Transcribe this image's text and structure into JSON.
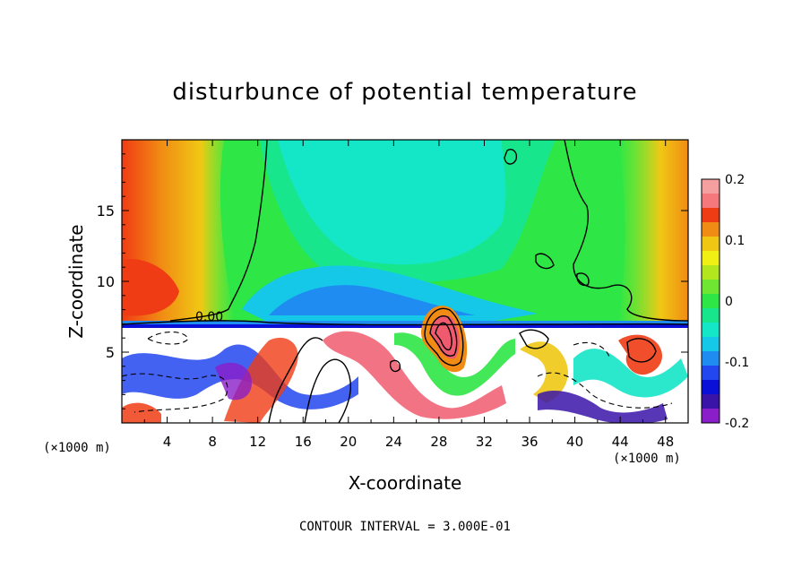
{
  "chart_data": {
    "type": "heatmap",
    "title": "disturbunce of potential temperature",
    "xlabel": "X-coordinate",
    "ylabel": "Z-coordinate",
    "x_unit_left": "(×1000 m)",
    "x_unit_right": "(×1000 m)",
    "xlim": [
      0,
      50
    ],
    "ylim": [
      0,
      20
    ],
    "xticks": [
      4,
      8,
      12,
      16,
      20,
      24,
      28,
      32,
      36,
      40,
      44,
      48
    ],
    "yticks": [
      5,
      10,
      15
    ],
    "colorbar": {
      "range": [
        -0.2,
        0.2
      ],
      "tick_labels": [
        {
          "value": 0.2,
          "label": "0.2"
        },
        {
          "value": 0.1,
          "label": "0.1"
        },
        {
          "value": 0.0,
          "label": "0"
        },
        {
          "value": -0.1,
          "label": "-0.1"
        },
        {
          "value": -0.2,
          "label": "-0.2"
        }
      ],
      "levels": [
        {
          "value": -0.2,
          "color": "#8a1ec8"
        },
        {
          "value": -0.175,
          "color": "#3a14a8"
        },
        {
          "value": -0.15,
          "color": "#0a10d8"
        },
        {
          "value": -0.125,
          "color": "#2246f0"
        },
        {
          "value": -0.1,
          "color": "#1e8cf0"
        },
        {
          "value": -0.075,
          "color": "#15c8e8"
        },
        {
          "value": -0.05,
          "color": "#14e6c8"
        },
        {
          "value": -0.025,
          "color": "#18e68c"
        },
        {
          "value": 0.0,
          "color": "#2ee646"
        },
        {
          "value": 0.025,
          "color": "#6ee632"
        },
        {
          "value": 0.05,
          "color": "#b4e61e"
        },
        {
          "value": 0.075,
          "color": "#f0f014"
        },
        {
          "value": 0.1,
          "color": "#f0c814"
        },
        {
          "value": 0.125,
          "color": "#f08c14"
        },
        {
          "value": 0.15,
          "color": "#f03c14"
        },
        {
          "value": 0.175,
          "color": "#f5787d"
        },
        {
          "value": 0.2,
          "color": "#f5a0a0"
        }
      ]
    },
    "contour_label": "0.00",
    "footer": "CONTOUR INTERVAL = 3.000E-01"
  }
}
